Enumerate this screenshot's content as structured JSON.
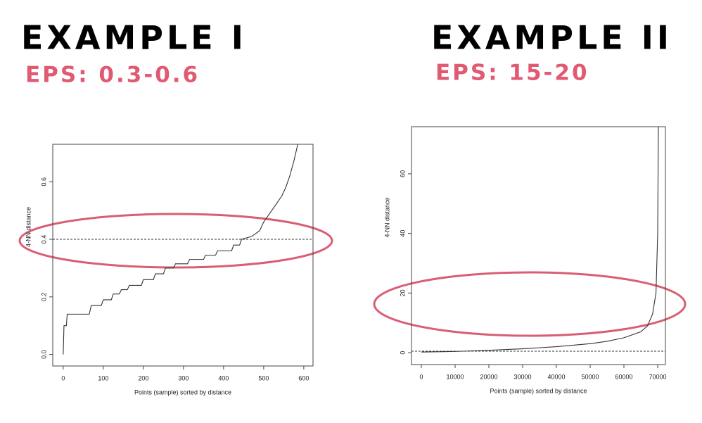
{
  "chart_data": [
    {
      "type": "line",
      "title": "EXAMPLE I",
      "subtitle": "EPS: 0.3-0.6",
      "x_label": "Points (sample) sorted by distance",
      "y_label": "4-NN distance",
      "series": [
        {
          "name": null,
          "color": "#333333",
          "x": [
            0,
            2,
            8,
            10,
            65,
            70,
            95,
            100,
            120,
            125,
            140,
            145,
            160,
            165,
            195,
            200,
            225,
            230,
            250,
            255,
            275,
            280,
            310,
            315,
            350,
            355,
            380,
            385,
            420,
            425,
            440,
            445,
            470,
            490,
            500,
            510,
            520,
            530,
            545,
            555,
            565,
            575,
            585
          ],
          "values": [
            0.0,
            0.1,
            0.1,
            0.14,
            0.14,
            0.17,
            0.17,
            0.19,
            0.19,
            0.21,
            0.21,
            0.225,
            0.225,
            0.24,
            0.24,
            0.26,
            0.26,
            0.28,
            0.28,
            0.3,
            0.3,
            0.315,
            0.315,
            0.33,
            0.33,
            0.345,
            0.345,
            0.36,
            0.36,
            0.38,
            0.38,
            0.4,
            0.41,
            0.43,
            0.46,
            0.48,
            0.5,
            0.52,
            0.55,
            0.58,
            0.62,
            0.67,
            0.73
          ]
        }
      ],
      "xlim": [
        -26,
        623
      ],
      "xticks": [
        0,
        100,
        200,
        300,
        400,
        500,
        600
      ],
      "ylim": [
        -0.04,
        0.73
      ],
      "yticks": [
        {
          "value": 0,
          "label": "0.0"
        },
        0.2,
        0.4,
        0.6
      ],
      "hline": 0.4
    },
    {
      "type": "line",
      "title": "EXAMPLE II",
      "subtitle": "EPS: 15-20",
      "x_label": "Points (sample) sorted by distance",
      "y_label": "4-NN distance",
      "series": [
        {
          "name": null,
          "color": "#333333",
          "x": [
            0,
            10000,
            20000,
            30000,
            40000,
            50000,
            55000,
            60000,
            65000,
            67000,
            68500,
            69500,
            70000,
            70200
          ],
          "values": [
            0.2,
            0.4,
            0.8,
            1.3,
            2,
            3,
            3.8,
            5,
            7,
            9,
            13,
            20,
            40,
            75.8
          ]
        }
      ],
      "xlim": [
        -2917,
        72292
      ],
      "xticks": [
        0,
        10000,
        20000,
        30000,
        40000,
        50000,
        60000,
        70000
      ],
      "ylim": [
        -4,
        75.8
      ],
      "yticks": [
        0,
        20,
        40,
        60
      ],
      "hline": 0.5
    }
  ]
}
